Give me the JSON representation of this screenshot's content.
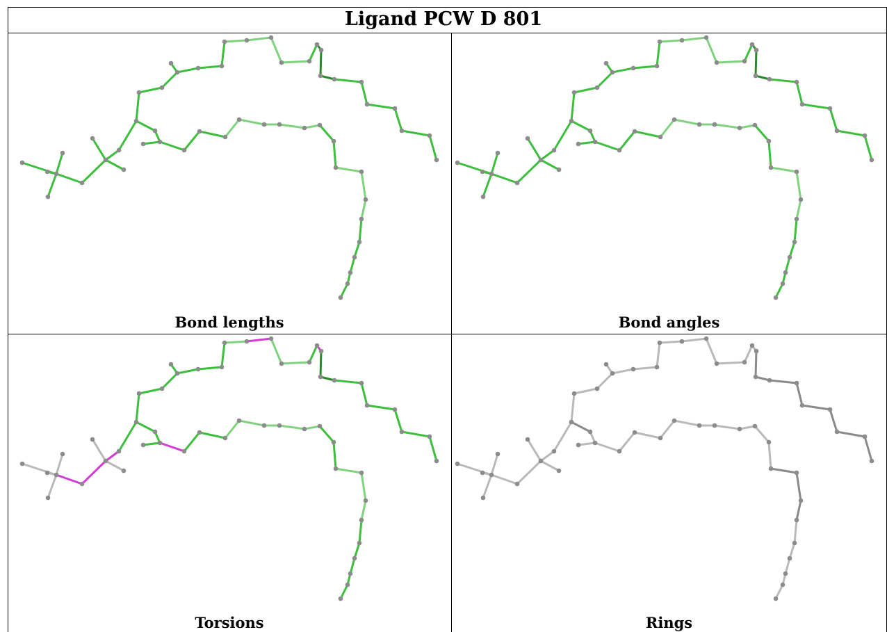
{
  "title": "Ligand PCW D 801",
  "panels": [
    {
      "caption": "Bond lengths",
      "scheme": "green"
    },
    {
      "caption": "Bond angles",
      "scheme": "green"
    },
    {
      "caption": "Torsions",
      "scheme": "torsion"
    },
    {
      "caption": "Rings",
      "scheme": "gray"
    }
  ],
  "colors": {
    "border": "#000000",
    "bond_green": "#3cbf3c",
    "bond_green_light": "#7fd37f",
    "bond_green_dark": "#2a8a2a",
    "bond_magenta": "#d43ad4",
    "bond_gray": "#b9b9b9",
    "bond_gray_dark": "#8a8a8a",
    "atom": "#8c8c8c"
  }
}
